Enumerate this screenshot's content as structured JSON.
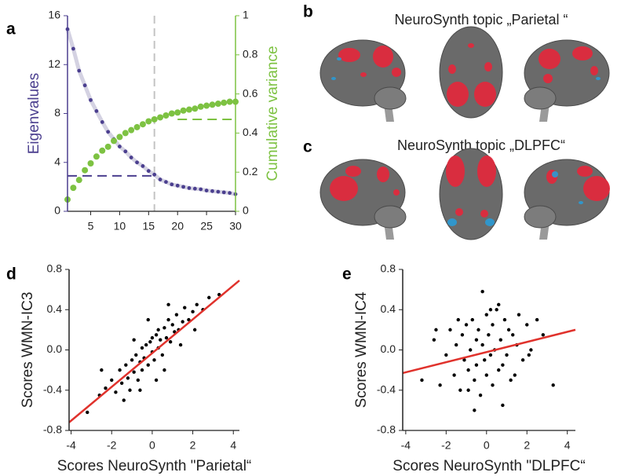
{
  "chart_data": [
    {
      "type": "line",
      "panel_label": "a",
      "x": [
        1,
        2,
        3,
        4,
        5,
        6,
        7,
        8,
        9,
        10,
        11,
        12,
        13,
        14,
        15,
        16,
        17,
        18,
        19,
        20,
        21,
        22,
        23,
        24,
        25,
        26,
        27,
        28,
        29,
        30
      ],
      "xlim": [
        1,
        30
      ],
      "xticks": [
        5,
        10,
        15,
        20,
        25,
        30
      ],
      "ylim": [
        0,
        16
      ],
      "yticks": [
        0,
        4,
        8,
        12,
        16
      ],
      "y2lim": [
        0,
        1
      ],
      "y2ticks": [
        0,
        0.2,
        0.4,
        0.6,
        0.8,
        1
      ],
      "series": [
        {
          "name": "Eigenvalues",
          "color": "#4b3f8f",
          "line_color": "#d4d2e2",
          "values": [
            14.9,
            13.3,
            11.5,
            10.3,
            9.1,
            8.2,
            7.3,
            6.5,
            5.9,
            5.3,
            4.9,
            4.4,
            4.0,
            3.7,
            3.3,
            3.0,
            2.6,
            2.4,
            2.2,
            2.1,
            2.0,
            1.9,
            1.85,
            1.8,
            1.7,
            1.65,
            1.6,
            1.55,
            1.5,
            1.4
          ]
        },
        {
          "name": "Cumulative variance",
          "color": "#7dc242",
          "axis": "y2",
          "values": [
            0.06,
            0.12,
            0.16,
            0.21,
            0.245,
            0.28,
            0.31,
            0.33,
            0.36,
            0.38,
            0.4,
            0.415,
            0.43,
            0.445,
            0.46,
            0.47,
            0.48,
            0.49,
            0.5,
            0.505,
            0.515,
            0.52,
            0.525,
            0.535,
            0.54,
            0.545,
            0.55,
            0.555,
            0.56,
            0.56
          ]
        }
      ],
      "reference_lines": [
        {
          "x": 16,
          "color": "#c4c4c4"
        },
        {
          "y": 2.9,
          "x_range": [
            1,
            16
          ],
          "color": "#4b3f8f"
        },
        {
          "y": 0.47,
          "axis": "y2",
          "x_range": [
            20,
            30
          ],
          "color": "#7dc242"
        }
      ]
    },
    {
      "type": "scatter",
      "panel_label": "d",
      "xlabel": "Scores NeuroSynth \"Parietal“",
      "ylabel": "Scores WMN-IC3",
      "xlim": [
        -4.1,
        4.3
      ],
      "xticks": [
        -4,
        -2,
        0,
        2,
        4
      ],
      "ylim": [
        -0.8,
        0.8
      ],
      "yticks": [
        -0.8,
        -0.4,
        {
          "value": 0,
          "label": "0.0"
        },
        0.4,
        0.8
      ],
      "color": "#000000",
      "x": [
        -3.2,
        -2.6,
        -2.3,
        -2.0,
        -1.8,
        -1.6,
        -1.5,
        -1.3,
        -1.2,
        -1.1,
        -1.0,
        -0.9,
        -0.8,
        -0.7,
        -0.6,
        -0.5,
        -0.5,
        -0.4,
        -0.3,
        -0.2,
        -0.1,
        0.0,
        0.0,
        0.1,
        0.2,
        0.3,
        0.3,
        0.4,
        0.5,
        0.6,
        0.7,
        0.8,
        0.9,
        1.0,
        1.1,
        1.2,
        1.3,
        1.5,
        1.6,
        1.8,
        2.0,
        2.2,
        2.5,
        2.8,
        3.3,
        -1.4,
        -0.9,
        0.6,
        1.4,
        -0.2,
        0.8,
        -2.5,
        2.1,
        0.2,
        -0.6
      ],
      "values": [
        -0.62,
        -0.45,
        -0.38,
        -0.3,
        -0.42,
        -0.2,
        -0.33,
        -0.15,
        -0.28,
        -0.4,
        -0.1,
        -0.22,
        -0.05,
        -0.3,
        -0.12,
        0.02,
        -0.2,
        -0.08,
        0.05,
        -0.15,
        0.08,
        -0.02,
        0.12,
        -0.1,
        0.15,
        0.02,
        0.2,
        0.1,
        -0.05,
        0.22,
        0.12,
        0.3,
        0.08,
        0.25,
        0.18,
        0.35,
        0.2,
        0.28,
        0.42,
        0.3,
        0.38,
        0.45,
        0.4,
        0.52,
        0.55,
        -0.5,
        0.1,
        -0.2,
        0.05,
        0.3,
        0.45,
        -0.2,
        0.2,
        -0.3,
        -0.4
      ],
      "fit_line": {
        "x": [
          -4.1,
          4.3
        ],
        "values": [
          -0.72,
          0.69
        ],
        "color": "#e0322c"
      }
    },
    {
      "type": "scatter",
      "panel_label": "e",
      "xlabel": "Scores NeuroSynth \"DLPFC“",
      "ylabel": "Scores WMN-IC4",
      "xlim": [
        -4.15,
        4.4
      ],
      "xticks": [
        -4,
        -2,
        0,
        2,
        4
      ],
      "ylim": [
        -0.8,
        0.8
      ],
      "yticks": [
        -0.8,
        -0.4,
        {
          "value": 0,
          "label": "0.0"
        },
        0.4,
        0.8
      ],
      "color": "#000000",
      "x": [
        -3.2,
        -2.6,
        -2.3,
        -2.0,
        -1.8,
        -1.6,
        -1.5,
        -1.3,
        -1.2,
        -1.1,
        -1.0,
        -0.9,
        -0.8,
        -0.7,
        -0.6,
        -0.5,
        -0.5,
        -0.4,
        -0.3,
        -0.2,
        -0.1,
        0.0,
        0.0,
        0.1,
        0.2,
        0.3,
        0.3,
        0.4,
        0.5,
        0.6,
        0.7,
        0.8,
        0.9,
        1.0,
        1.1,
        1.2,
        1.3,
        1.5,
        1.6,
        1.8,
        2.0,
        2.2,
        2.5,
        2.8,
        3.3,
        -1.4,
        -0.9,
        0.6,
        1.4,
        -0.2,
        0.8,
        -2.5,
        2.1,
        0.2,
        -0.6
      ],
      "values": [
        -0.3,
        0.1,
        -0.35,
        -0.05,
        0.2,
        -0.25,
        0.05,
        -0.4,
        0.15,
        -0.1,
        0.25,
        -0.2,
        0.0,
        0.3,
        -0.3,
        0.1,
        -0.15,
        0.2,
        -0.45,
        0.05,
        -0.1,
        0.35,
        -0.25,
        0.15,
        -0.05,
        0.25,
        -0.35,
        0.0,
        0.4,
        -0.2,
        0.1,
        -0.15,
        0.3,
        -0.05,
        0.2,
        -0.3,
        0.15,
        0.05,
        0.35,
        -0.1,
        0.25,
        0.0,
        0.3,
        0.15,
        -0.35,
        0.3,
        -0.4,
        0.45,
        -0.25,
        0.58,
        -0.55,
        0.2,
        -0.05,
        0.4,
        -0.6
      ],
      "fit_line": {
        "x": [
          -4.15,
          4.4
        ],
        "values": [
          -0.23,
          0.2
        ],
        "color": "#e0322c"
      }
    }
  ],
  "brain_panels": [
    {
      "panel_label": "b",
      "title": "NeuroSynth topic  „Parietal “"
    },
    {
      "panel_label": "c",
      "title": "NeuroSynth topic  „DLPFC“"
    }
  ]
}
